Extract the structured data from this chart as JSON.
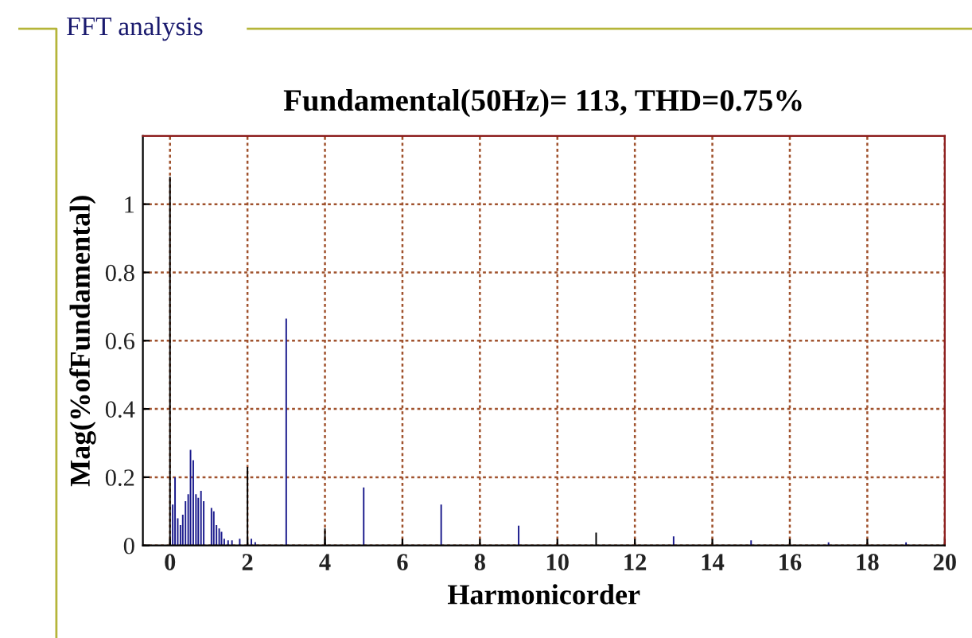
{
  "chart_data": {
    "type": "bar",
    "title": "FFT analysis",
    "subtitle": "Fundamental(50Hz)= 113, THD=0.75%",
    "xlabel": "Harmonicorder",
    "ylabel": "Mag(%ofFundamental)",
    "x": [
      0,
      0.07,
      0.13,
      0.2,
      0.27,
      0.33,
      0.4,
      0.47,
      0.53,
      0.6,
      0.67,
      0.73,
      0.8,
      0.87,
      1,
      1.07,
      1.13,
      1.2,
      1.27,
      1.33,
      1.4,
      1.5,
      1.6,
      1.8,
      2,
      2.1,
      2.2,
      3,
      4,
      5,
      6,
      7,
      9,
      11,
      13,
      15,
      17,
      19
    ],
    "values": [
      1.08,
      0.12,
      0.2,
      0.08,
      0.06,
      0.09,
      0.13,
      0.15,
      0.28,
      0.25,
      0.15,
      0.14,
      0.16,
      0.13,
      null,
      0.11,
      0.1,
      0.06,
      0.05,
      0.04,
      0.02,
      0.015,
      0.015,
      0.02,
      0.23,
      0.02,
      0.01,
      0.665,
      0.05,
      0.17,
      0.02,
      0.12,
      0.058,
      0.038,
      0.027,
      0.015,
      0.009,
      0.009
    ],
    "colors": [
      "#000000",
      "#1a1a8c",
      "#1a1a8c",
      "#1a1a8c",
      "#1a1a8c",
      "#1a1a8c",
      "#1a1a8c",
      "#1a1a8c",
      "#1a1a8c",
      "#1a1a8c",
      "#1a1a8c",
      "#1a1a8c",
      "#1a1a8c",
      "#1a1a8c",
      "#000000",
      "#1a1a8c",
      "#1a1a8c",
      "#1a1a8c",
      "#1a1a8c",
      "#1a1a8c",
      "#1a1a8c",
      "#1a1a8c",
      "#1a1a8c",
      "#1a1a8c",
      "#000000",
      "#1a1a8c",
      "#1a1a8c",
      "#1a1a8c",
      "#000000",
      "#1a1a8c",
      "#000000",
      "#1a1a8c",
      "#1a1a8c",
      "#000000",
      "#1a1a8c",
      "#1a1a8c",
      "#1a1a8c",
      "#1a1a8c"
    ],
    "xlim": [
      -0.7,
      20
    ],
    "ylim": [
      0,
      1.2
    ],
    "xticks": [
      0,
      2,
      4,
      6,
      8,
      10,
      12,
      14,
      16,
      18,
      20
    ],
    "yticks": [
      0,
      0.2,
      0.4,
      0.6,
      0.8,
      1
    ],
    "grid": true
  }
}
